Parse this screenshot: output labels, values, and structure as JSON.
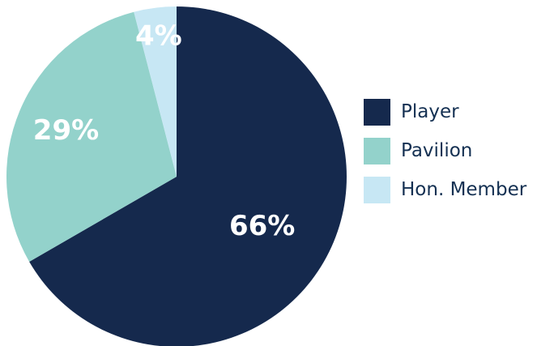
{
  "chart_data": {
    "type": "pie",
    "title": "",
    "categories": [
      "Player",
      "Pavilion",
      "Hon. Member"
    ],
    "values": [
      66,
      29,
      4
    ],
    "value_labels": [
      "66%",
      "29%",
      "4%"
    ],
    "colors": [
      "#15294d",
      "#93d2cb",
      "#c7e7f4"
    ],
    "start_angle": "12 o'clock",
    "direction": "clockwise",
    "legend_position": "right"
  }
}
